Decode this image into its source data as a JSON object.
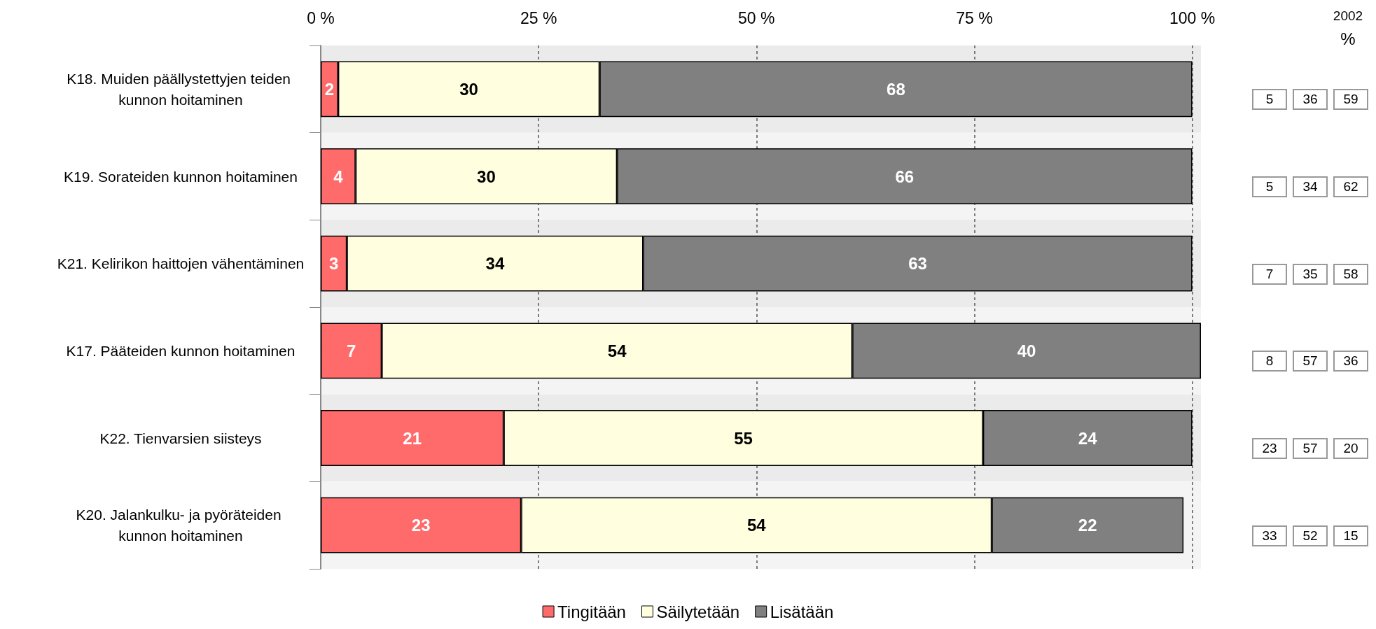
{
  "chart_data": {
    "type": "bar",
    "orientation": "horizontal",
    "stacked": true,
    "categories": [
      "K18. Muiden päällystettyjen teiden kunnon hoitaminen",
      "K19. Sorateiden kunnon hoitaminen",
      "K21. Kelirikon haittojen vähentäminen",
      "K17. Pääteiden kunnon hoitaminen",
      "K22. Tienvarsien siisteys",
      "K20. Jalankulku- ja pyöräteiden kunnon hoitaminen"
    ],
    "series": [
      {
        "name": "Tingitään",
        "color": "#ff6b6b",
        "values": [
          2,
          4,
          3,
          7,
          21,
          23
        ]
      },
      {
        "name": "Säilytetään",
        "color": "#ffffe0",
        "values": [
          30,
          30,
          34,
          54,
          55,
          54
        ]
      },
      {
        "name": "Lisätään",
        "color": "#808080",
        "values": [
          68,
          66,
          63,
          40,
          24,
          22
        ]
      }
    ],
    "xlim": [
      0,
      101
    ],
    "xticks": [
      {
        "value": 0,
        "label": "0 %"
      },
      {
        "value": 25,
        "label": "25 %"
      },
      {
        "value": 50,
        "label": "50 %"
      },
      {
        "value": 75,
        "label": "75 %"
      },
      {
        "value": 100,
        "label": "100 %"
      }
    ],
    "grid": "x",
    "legend": "bottom",
    "data_labels": true,
    "annotations": [
      "2002",
      "%",
      "5",
      "36",
      "59",
      "5",
      "34",
      "62",
      "7",
      "35",
      "58",
      "8",
      "57",
      "36",
      "23",
      "57",
      "20",
      "33",
      "52",
      "15"
    ]
  }
}
